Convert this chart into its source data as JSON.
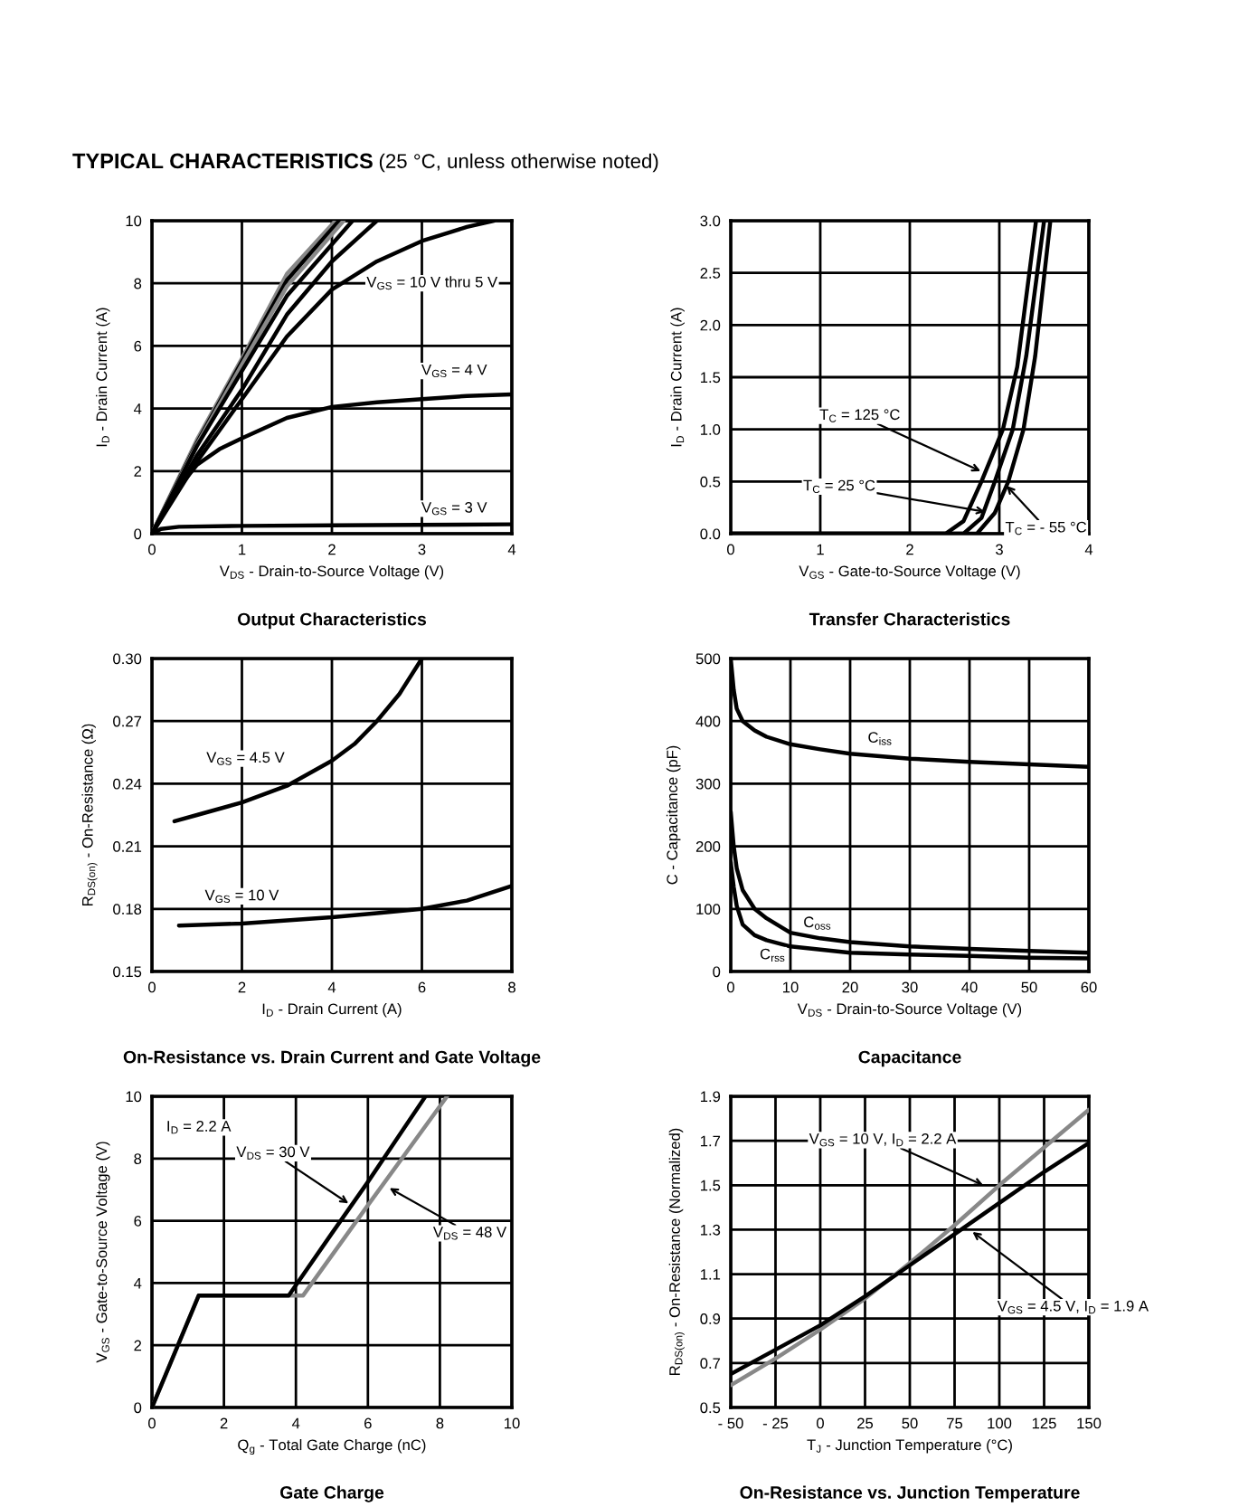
{
  "chart_data": [
    {
      "type": "line",
      "title": "Output Characteristics",
      "xlabel": "V$_{DS}$ - Drain-to-Source Voltage (V)",
      "ylabel": "I$_{D}$ - Drain Current (A)",
      "xlim": [
        0,
        4
      ],
      "ylim": [
        0,
        10
      ],
      "xticks": [
        0,
        1,
        2,
        3,
        4
      ],
      "yticks": [
        0,
        2,
        4,
        6,
        8,
        10
      ],
      "grid": true,
      "marker": "none",
      "line_style": "solid",
      "series": [
        {
          "color": "#888888",
          "x": [
            0,
            0.5,
            1,
            1.5,
            2.04
          ],
          "values": [
            0,
            3.0,
            5.6,
            8.3,
            10
          ]
        },
        {
          "color": "#000000",
          "x": [
            0,
            0.5,
            1,
            1.5,
            2.08
          ],
          "values": [
            0,
            2.9,
            5.5,
            8.1,
            10
          ]
        },
        {
          "color": "#888888",
          "x": [
            0,
            0.5,
            1,
            1.5,
            2.13
          ],
          "values": [
            0,
            2.85,
            5.4,
            7.9,
            10
          ]
        },
        {
          "color": "#000000",
          "x": [
            0,
            0.5,
            1,
            1.5,
            2.23
          ],
          "values": [
            0,
            2.8,
            5.2,
            7.6,
            10
          ]
        },
        {
          "color": "#000000",
          "x": [
            0,
            0.5,
            1,
            1.5,
            2,
            2.5
          ],
          "values": [
            0,
            2.5,
            4.6,
            7.0,
            8.7,
            10
          ]
        },
        {
          "color": "#000000",
          "x": [
            0,
            0.5,
            1,
            1.5,
            2,
            2.5,
            3,
            3.5,
            3.8
          ],
          "values": [
            0,
            2.3,
            4.3,
            6.3,
            7.8,
            8.7,
            9.35,
            9.8,
            10
          ]
        },
        {
          "color": "#000000",
          "x": [
            0,
            0.25,
            0.5,
            0.75,
            1,
            1.5,
            2,
            2.5,
            3,
            3.5,
            4
          ],
          "values": [
            0,
            1.3,
            2.2,
            2.7,
            3.05,
            3.7,
            4.05,
            4.2,
            4.3,
            4.4,
            4.45
          ]
        },
        {
          "color": "#000000",
          "x": [
            0,
            0.1,
            0.3,
            1,
            2,
            4
          ],
          "values": [
            0,
            0.15,
            0.22,
            0.25,
            0.27,
            0.3
          ]
        }
      ],
      "annotations": [
        "TYPICAL CHARACTERISTICS",
        "(25 °C, unless otherwise noted)",
        {
          "text": "V$_{GS}$ = 10 V thru 5 V",
          "x": 2.05,
          "y": 8.0
        },
        "V$_{GS}$ = 4 V",
        "V$_{GS}$ = 3 V"
      ]
    },
    {
      "type": "line",
      "title": "Transfer Characteristics",
      "xlabel": "V$_{GS}$ - Gate-to-Source Voltage (V)",
      "ylabel": "I$_{D}$ - Drain Current (A)",
      "xlim": [
        0,
        4
      ],
      "ylim": [
        0,
        3
      ],
      "xticks": [
        0,
        1,
        2,
        3,
        4
      ],
      "yticks": [
        {
          "value": 0,
          "label": "0.0"
        },
        0.5,
        {
          "value": 1,
          "label": "1.0"
        },
        1.5,
        {
          "value": 2,
          "label": "2.0"
        },
        2.5,
        {
          "value": 3,
          "label": "3.0"
        }
      ],
      "grid": true,
      "marker": "none",
      "line_style": "solid",
      "series": [
        {
          "color": "#000000",
          "x": [
            0,
            2.4,
            2.6,
            2.8,
            3.04,
            3.2,
            3.41
          ],
          "values": [
            0,
            0,
            0.12,
            0.5,
            1.0,
            1.6,
            3.0
          ]
        },
        {
          "color": "#000000",
          "x": [
            0,
            2.6,
            2.8,
            2.95,
            3.15,
            3.3,
            3.5
          ],
          "values": [
            0,
            0,
            0.15,
            0.5,
            1.0,
            1.7,
            3.0
          ]
        },
        {
          "color": "#000000",
          "x": [
            0,
            2.75,
            2.95,
            3.1,
            3.27,
            3.4,
            3.57
          ],
          "values": [
            0,
            0,
            0.2,
            0.5,
            1.0,
            1.7,
            3.0
          ]
        }
      ],
      "annotations": [
        {
          "text": "T$_{C}$ = 125 °C",
          "x": 2.79,
          "y": 0.6
        },
        {
          "text": "T$_{C}$ = 25 °C",
          "x": 2.84,
          "y": 0.21
        },
        {
          "text": "T$_{C}$ = - 55 °C",
          "x": 3.08,
          "y": 0.46
        }
      ]
    },
    {
      "type": "line",
      "title": "On-Resistance vs. Drain Current and Gate Voltage",
      "xlabel": "I$_{D}$ - Drain Current (A)",
      "ylabel": "R$_{DS(on)}$ - On-Resistance (Ω)",
      "xlim": [
        0,
        8
      ],
      "ylim": [
        0.15,
        0.3
      ],
      "xticks": [
        0,
        2,
        4,
        6,
        8
      ],
      "yticks": [
        0.15,
        0.18,
        0.21,
        0.24,
        0.27,
        {
          "value": 0.3,
          "label": "0.30"
        }
      ],
      "grid": true,
      "marker": "none",
      "line_style": "solid",
      "series": [
        {
          "color": "#000000",
          "x": [
            0.5,
            1,
            2,
            3,
            4,
            4.5,
            5,
            5.5,
            6
          ],
          "values": [
            0.222,
            0.225,
            0.231,
            0.239,
            0.251,
            0.259,
            0.27,
            0.283,
            0.3
          ]
        },
        {
          "color": "#000000",
          "x": [
            0.6,
            2,
            4,
            5,
            6,
            7,
            8
          ],
          "values": [
            0.172,
            0.173,
            0.176,
            0.178,
            0.18,
            0.184,
            0.191
          ]
        }
      ],
      "annotations": [
        "V$_{GS}$ = 4.5 V",
        "V$_{GS}$ = 10 V"
      ]
    },
    {
      "type": "line",
      "title": "Capacitance",
      "xlabel": "V$_{DS}$ - Drain-to-Source Voltage (V)",
      "ylabel": "C - Capacitance (pF)",
      "xlim": [
        0,
        60
      ],
      "ylim": [
        0,
        500
      ],
      "xticks": [
        0,
        10,
        20,
        30,
        40,
        50,
        60
      ],
      "yticks": [
        0,
        100,
        200,
        300,
        400,
        500
      ],
      "grid": true,
      "marker": "none",
      "line_style": "solid",
      "series": [
        {
          "color": "#000000",
          "x": [
            0,
            0.5,
            1,
            2,
            4,
            6,
            10,
            15,
            20,
            30,
            40,
            50,
            60
          ],
          "values": [
            500,
            450,
            420,
            400,
            385,
            375,
            363,
            355,
            348,
            340,
            335,
            331,
            327
          ]
        },
        {
          "color": "#000000",
          "x": [
            0,
            0.5,
            1,
            2,
            4,
            6,
            10,
            15,
            20,
            30,
            40,
            50,
            60
          ],
          "values": [
            255,
            200,
            165,
            130,
            100,
            85,
            62,
            53,
            47,
            40,
            36,
            33,
            30
          ]
        },
        {
          "color": "#000000",
          "x": [
            0,
            0.5,
            1,
            2,
            4,
            6,
            10,
            15,
            20,
            30,
            40,
            50,
            60
          ],
          "values": [
            175,
            135,
            105,
            75,
            58,
            50,
            40,
            35,
            30,
            27,
            25,
            22,
            21
          ]
        }
      ],
      "annotations": [
        {
          "text": "C$_{iss}$",
          "x": 25,
          "y": 372
        },
        {
          "text": "C$_{oss}$",
          "x": 14.5,
          "y": 77
        },
        {
          "text": "C$_{rss}$",
          "x": 7,
          "y": 26
        }
      ]
    },
    {
      "type": "line",
      "title": "Gate Charge",
      "xlabel": "Q$_{g}$ - Total Gate Charge (nC)",
      "ylabel": "V$_{GS}$ - Gate-to-Source Voltage (V)",
      "xlim": [
        0,
        10
      ],
      "ylim": [
        0,
        10
      ],
      "xticks": [
        0,
        2,
        4,
        6,
        8,
        10
      ],
      "yticks": [
        0,
        2,
        4,
        6,
        8,
        10
      ],
      "grid": true,
      "marker": "none",
      "line_style": "solid",
      "series": [
        {
          "color": "#888888",
          "x": [
            0,
            1.3,
            4.2,
            6,
            8.2
          ],
          "values": [
            0,
            3.6,
            3.6,
            6.5,
            10
          ]
        },
        {
          "color": "#000000",
          "x": [
            0,
            1.3,
            3.8,
            5,
            6,
            7.6
          ],
          "values": [
            0,
            3.6,
            3.6,
            5.6,
            7.25,
            10
          ]
        }
      ],
      "annotations": [
        "I$_{D}$ = 2.2 A",
        {
          "text": "V$_{DS}$ = 30 V",
          "x": 5.46,
          "y": 6.56
        },
        {
          "text": "V$_{DS}$ = 48 V",
          "x": 6.6,
          "y": 7.05
        }
      ]
    },
    {
      "type": "line",
      "title": "On-Resistance vs. Junction Temperature",
      "xlabel": "T$_{J}$ - Junction Temperature (°C)",
      "ylabel": "R$_{DS(on)}$ - On-Resistance (Normalized)",
      "xlim": [
        -50,
        150
      ],
      "ylim": [
        0.5,
        1.9
      ],
      "xticks": [
        {
          "value": -50,
          "label": "- 50"
        },
        {
          "value": -25,
          "label": "- 25"
        },
        0,
        25,
        50,
        75,
        100,
        125,
        150
      ],
      "yticks": [
        0.5,
        0.7,
        0.9,
        1.1,
        1.3,
        1.5,
        1.7,
        1.9
      ],
      "grid": true,
      "marker": "none",
      "line_style": "solid",
      "series": [
        {
          "color": "#888888",
          "x": [
            -50,
            -25,
            0,
            25,
            50,
            75,
            100,
            125,
            150
          ],
          "values": [
            0.6,
            0.72,
            0.85,
            0.99,
            1.15,
            1.32,
            1.5,
            1.67,
            1.84
          ]
        },
        {
          "color": "#000000",
          "x": [
            -50,
            -25,
            0,
            25,
            50,
            75,
            100,
            125,
            150
          ],
          "values": [
            0.65,
            0.76,
            0.87,
            1.0,
            1.14,
            1.28,
            1.42,
            1.56,
            1.69
          ]
        }
      ],
      "annotations": [
        {
          "text": "V$_{GS}$ = 10 V, I$_{D}$ = 2.2 A",
          "x": 91,
          "y": 1.5
        },
        {
          "text": "V$_{GS}$ = 4.5 V, I$_{D}$ = 1.9 A",
          "x": 85,
          "y": 1.29
        }
      ]
    }
  ]
}
